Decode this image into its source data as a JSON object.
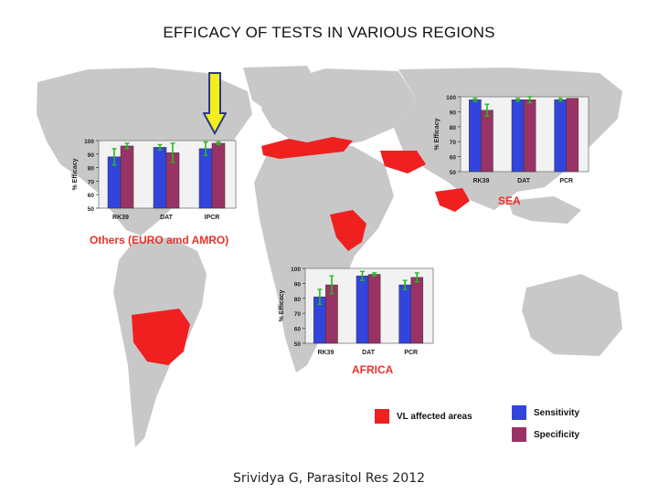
{
  "title": "EFFICACY OF TESTS IN VARIOUS REGIONS",
  "citation": "Srividya G,  Parasitol Res 2012",
  "colors": {
    "sensitivity": "#3344dd",
    "specificity": "#993366",
    "affected": "#f02020",
    "land": "#c8c8c8",
    "error_bar": "#22bb22",
    "arrow_fill": "#f4ee1a",
    "arrow_stroke": "#2d3a8c",
    "region_label": "#e8322a"
  },
  "legend": {
    "affected_label": "VL affected areas",
    "sensitivity_label": "Sensitivity",
    "specificity_label": "Specificity"
  },
  "chart_data": [
    {
      "type": "bar",
      "region": "Others (EURO amd AMRO)",
      "categories": [
        "RK39",
        "DAT",
        "IPCR"
      ],
      "series": [
        {
          "name": "Sensitivity",
          "values": [
            88,
            95,
            94
          ],
          "errors": [
            6,
            2,
            5
          ]
        },
        {
          "name": "Specificity",
          "values": [
            96,
            91,
            98
          ],
          "errors": [
            2,
            7,
            1
          ]
        }
      ],
      "ylabel": "% Efficacy",
      "ylim": [
        50,
        100
      ],
      "yticks": [
        "100",
        "90",
        "80",
        "70",
        "60",
        "50"
      ]
    },
    {
      "type": "bar",
      "region": "SEA",
      "categories": [
        "RK39",
        "DAT",
        "PCR"
      ],
      "series": [
        {
          "name": "Sensitivity",
          "values": [
            98,
            98,
            98
          ],
          "errors": [
            1,
            1,
            1
          ]
        },
        {
          "name": "Specificity",
          "values": [
            91,
            98,
            99
          ],
          "errors": [
            4,
            2,
            0
          ]
        }
      ],
      "ylabel": "% Efficacy",
      "ylim": [
        50,
        100
      ],
      "yticks": [
        "100",
        "90",
        "80",
        "70",
        "60",
        "50"
      ]
    },
    {
      "type": "bar",
      "region": "AFRICA",
      "categories": [
        "RK39",
        "DAT",
        "PCR"
      ],
      "series": [
        {
          "name": "Sensitivity",
          "values": [
            81,
            95,
            89
          ],
          "errors": [
            5,
            3,
            3
          ]
        },
        {
          "name": "Specificity",
          "values": [
            89,
            96,
            94
          ],
          "errors": [
            6,
            1,
            3
          ]
        }
      ],
      "ylabel": "% Efficacy",
      "ylim": [
        50,
        100
      ],
      "yticks": [
        "100",
        "90",
        "80",
        "70",
        "60",
        "50"
      ]
    }
  ]
}
